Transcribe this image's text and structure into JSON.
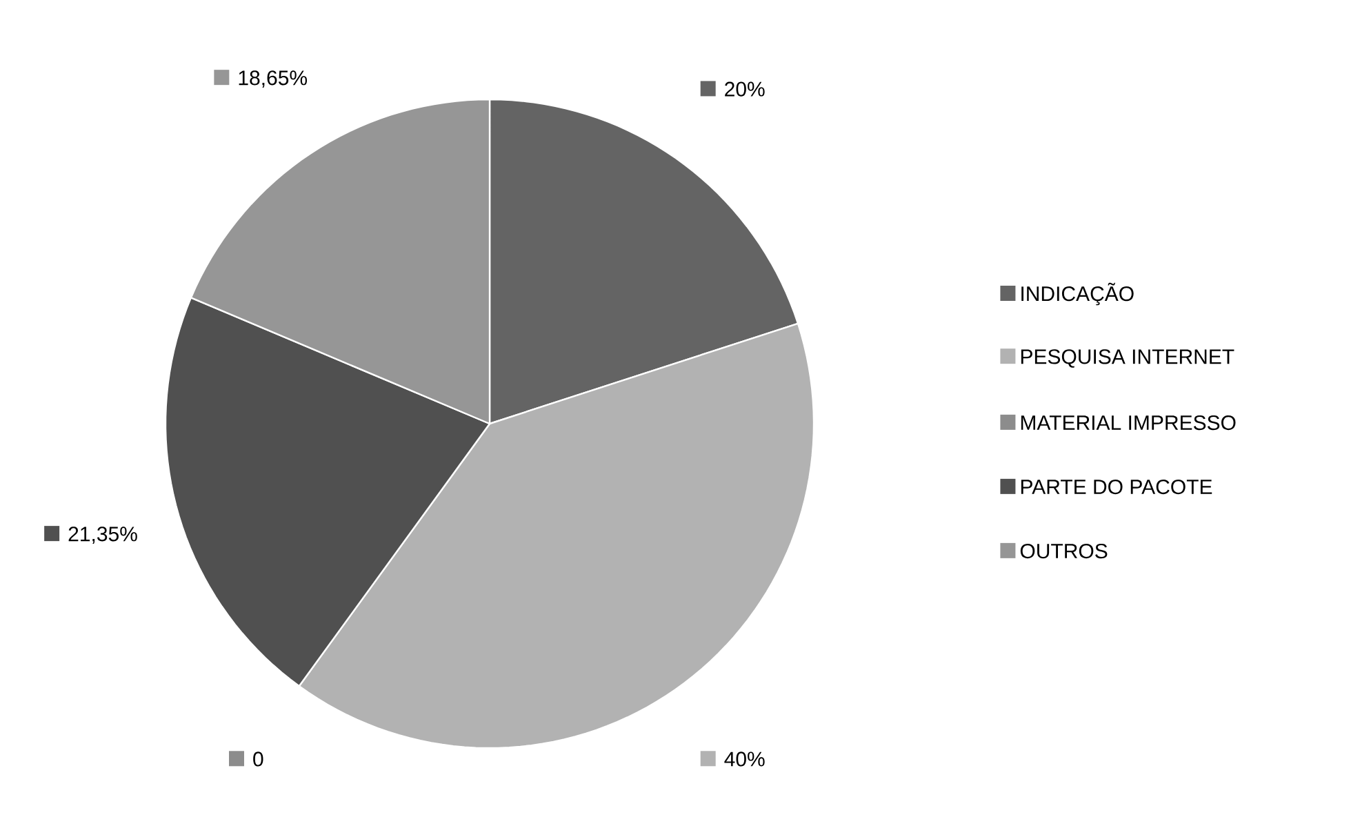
{
  "chart_data": {
    "type": "pie",
    "categories": [
      "INDICAÇÃO",
      "PESQUISA INTERNET",
      "MATERIAL IMPRESSO",
      "PARTE DO PACOTE",
      "OUTROS"
    ],
    "values": [
      20,
      40,
      0,
      21.35,
      18.65
    ],
    "colors": [
      "#646464",
      "#b2b2b2",
      "#8c8c8c",
      "#505050",
      "#969696"
    ],
    "value_labels": [
      "20%",
      "40%",
      "0",
      "21,35%",
      "18,65%"
    ],
    "legend": "right"
  }
}
